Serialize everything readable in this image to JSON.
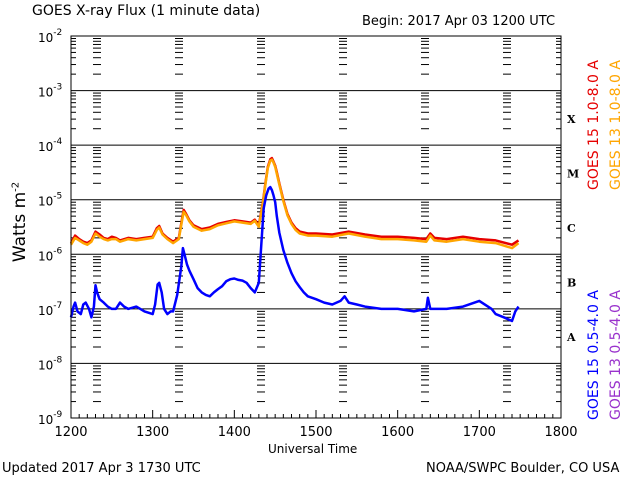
{
  "header": {
    "title": "GOES X-ray Flux (1 minute data)",
    "begin": "Begin: 2017 Apr 03 1200 UTC"
  },
  "footer": {
    "updated": "Updated 2017 Apr  3 1730 UTC",
    "source": "NOAA/SWPC Boulder, CO USA"
  },
  "chart_data": {
    "type": "line",
    "title": "GOES X-ray Flux (1 minute data)",
    "xlabel": "Universal Time",
    "ylabel": "Watts m",
    "ylabel_sup": "-2",
    "xlim": [
      1200,
      1800
    ],
    "ylim": [
      1e-09,
      0.01
    ],
    "yscale": "log",
    "grid": "horizontal lines at each decade",
    "x_ticks": [
      "1200",
      "1300",
      "1400",
      "1500",
      "1600",
      "1700",
      "1800"
    ],
    "y_ticks": [
      {
        "base": "10",
        "exp": "-9",
        "value": 1e-09
      },
      {
        "base": "10",
        "exp": "-8",
        "value": 1e-08
      },
      {
        "base": "10",
        "exp": "-7",
        "value": 1e-07
      },
      {
        "base": "10",
        "exp": "-6",
        "value": 1e-06
      },
      {
        "base": "10",
        "exp": "-5",
        "value": 1e-05
      },
      {
        "base": "10",
        "exp": "-4",
        "value": 0.0001
      },
      {
        "base": "10",
        "exp": "-3",
        "value": 0.001
      },
      {
        "base": "10",
        "exp": "-2",
        "value": 0.01
      }
    ],
    "flare_classes": [
      {
        "label": "A",
        "value": 1e-08
      },
      {
        "label": "B",
        "value": 1e-07
      },
      {
        "label": "C",
        "value": 1e-06
      },
      {
        "label": "M",
        "value": 1e-05
      },
      {
        "label": "X",
        "value": 0.0001
      }
    ],
    "legend": [
      {
        "text": "GOES 15 1.0-8.0 A",
        "color": "#e60000"
      },
      {
        "text": "GOES 13 1.0-8.0 A",
        "color": "#ffa500"
      },
      {
        "text": "GOES 15 0.5-4.0 A",
        "color": "#0000ff"
      },
      {
        "text": "GOES 13 0.5-4.0 A",
        "color": "#9932cc"
      }
    ],
    "series": [
      {
        "name": "GOES 15 1.0-8.0 A",
        "color": "#e60000",
        "x": [
          1200,
          1205,
          1210,
          1215,
          1220,
          1225,
          1230,
          1235,
          1240,
          1245,
          1250,
          1255,
          1260,
          1270,
          1280,
          1290,
          1300,
          1305,
          1308,
          1312,
          1318,
          1325,
          1332,
          1336,
          1338,
          1341,
          1345,
          1350,
          1360,
          1370,
          1380,
          1390,
          1400,
          1410,
          1420,
          1425,
          1430,
          1435,
          1438,
          1441,
          1444,
          1446,
          1448,
          1450,
          1452,
          1455,
          1460,
          1465,
          1470,
          1475,
          1480,
          1490,
          1500,
          1520,
          1540,
          1560,
          1580,
          1600,
          1620,
          1635,
          1640,
          1645,
          1660,
          1680,
          1700,
          1720,
          1740,
          1748
        ],
        "y": [
          1.6e-06,
          2.2e-06,
          1.9e-06,
          1.7e-06,
          1.6e-06,
          1.8e-06,
          2.6e-06,
          2.3e-06,
          2e-06,
          1.9e-06,
          2.1e-06,
          2e-06,
          1.8e-06,
          2e-06,
          1.9e-06,
          2e-06,
          2.1e-06,
          3e-06,
          3.3e-06,
          2.4e-06,
          2e-06,
          1.7e-06,
          2e-06,
          4.5e-06,
          6.5e-06,
          5.5e-06,
          4.2e-06,
          3.4e-06,
          2.9e-06,
          3.1e-06,
          3.6e-06,
          3.9e-06,
          4.2e-06,
          4e-06,
          3.8e-06,
          4.3e-06,
          3.4e-06,
          9e-06,
          2e-05,
          4e-05,
          5.5e-05,
          5.8e-05,
          5e-05,
          4.2e-05,
          3.2e-05,
          2e-05,
          1e-05,
          5.5e-06,
          3.8e-06,
          3e-06,
          2.6e-06,
          2.4e-06,
          2.4e-06,
          2.3e-06,
          2.6e-06,
          2.3e-06,
          2.1e-06,
          2.1e-06,
          2e-06,
          1.9e-06,
          2.4e-06,
          2e-06,
          1.9e-06,
          2.1e-06,
          1.9e-06,
          1.8e-06,
          1.5e-06,
          1.8e-06
        ]
      },
      {
        "name": "GOES 13 1.0-8.0 A",
        "color": "#ffa500",
        "x": [
          1200,
          1205,
          1210,
          1215,
          1220,
          1225,
          1230,
          1235,
          1240,
          1245,
          1250,
          1255,
          1260,
          1270,
          1280,
          1290,
          1300,
          1305,
          1308,
          1312,
          1318,
          1325,
          1332,
          1336,
          1338,
          1341,
          1345,
          1350,
          1360,
          1370,
          1380,
          1390,
          1400,
          1410,
          1420,
          1425,
          1430,
          1435,
          1438,
          1441,
          1444,
          1446,
          1448,
          1450,
          1452,
          1455,
          1460,
          1465,
          1470,
          1475,
          1480,
          1490,
          1500,
          1520,
          1540,
          1560,
          1580,
          1600,
          1620,
          1635,
          1640,
          1645,
          1660,
          1680,
          1700,
          1720,
          1740,
          1748
        ],
        "y": [
          1.5e-06,
          2e-06,
          1.8e-06,
          1.6e-06,
          1.5e-06,
          1.7e-06,
          2.4e-06,
          2.1e-06,
          1.9e-06,
          1.8e-06,
          1.9e-06,
          1.9e-06,
          1.7e-06,
          1.9e-06,
          1.8e-06,
          1.9e-06,
          2e-06,
          2.8e-06,
          3.1e-06,
          2.3e-06,
          1.9e-06,
          1.6e-06,
          1.9e-06,
          4.2e-06,
          6e-06,
          5.2e-06,
          4e-06,
          3.2e-06,
          2.7e-06,
          2.9e-06,
          3.4e-06,
          3.7e-06,
          4e-06,
          3.8e-06,
          3.6e-06,
          4.1e-06,
          3.2e-06,
          8.5e-06,
          1.9e-05,
          3.8e-05,
          5.2e-05,
          5.4e-05,
          4.8e-05,
          4e-05,
          3e-05,
          1.9e-05,
          9.5e-06,
          5.2e-06,
          3.6e-06,
          2.8e-06,
          2.4e-06,
          2.2e-06,
          2.2e-06,
          2.1e-06,
          2.4e-06,
          2.1e-06,
          1.9e-06,
          1.9e-06,
          1.8e-06,
          1.7e-06,
          2.2e-06,
          1.8e-06,
          1.7e-06,
          1.9e-06,
          1.7e-06,
          1.6e-06,
          1.3e-06,
          1.6e-06
        ]
      },
      {
        "name": "GOES 15 0.5-4.0 A",
        "color": "#0000ff",
        "x": [
          1200,
          1203,
          1205,
          1208,
          1212,
          1215,
          1218,
          1222,
          1225,
          1228,
          1230,
          1232,
          1235,
          1240,
          1245,
          1250,
          1255,
          1260,
          1265,
          1270,
          1280,
          1290,
          1300,
          1303,
          1306,
          1308,
          1311,
          1314,
          1318,
          1322,
          1325,
          1330,
          1335,
          1337,
          1339,
          1342,
          1345,
          1350,
          1355,
          1360,
          1365,
          1370,
          1375,
          1380,
          1385,
          1390,
          1395,
          1400,
          1405,
          1410,
          1415,
          1420,
          1425,
          1430,
          1433,
          1436,
          1439,
          1442,
          1444,
          1446,
          1448,
          1450,
          1452,
          1455,
          1460,
          1465,
          1470,
          1475,
          1480,
          1485,
          1490,
          1500,
          1510,
          1520,
          1530,
          1535,
          1540,
          1550,
          1560,
          1580,
          1600,
          1620,
          1635,
          1637,
          1640,
          1650,
          1660,
          1680,
          1700,
          1715,
          1720,
          1730,
          1740,
          1744,
          1748
        ],
        "y": [
          7e-08,
          1.1e-07,
          1.3e-07,
          9e-08,
          8e-08,
          1.2e-07,
          1.3e-07,
          1e-07,
          7e-08,
          1.1e-07,
          2.7e-07,
          2e-07,
          1.5e-07,
          1.3e-07,
          1.1e-07,
          1e-07,
          1e-07,
          1.3e-07,
          1.1e-07,
          1e-07,
          1.1e-07,
          9e-08,
          8e-08,
          1.2e-07,
          2.8e-07,
          3e-07,
          2e-07,
          1e-07,
          8e-08,
          9e-08,
          9e-08,
          1.8e-07,
          6e-07,
          1.3e-06,
          1e-06,
          6.5e-07,
          5e-07,
          3.5e-07,
          2.4e-07,
          2e-07,
          1.8e-07,
          1.7e-07,
          2e-07,
          2.3e-07,
          2.6e-07,
          3.2e-07,
          3.5e-07,
          3.6e-07,
          3.4e-07,
          3.3e-07,
          3e-07,
          2.4e-07,
          2e-07,
          3e-07,
          1.5e-06,
          7e-06,
          1.2e-05,
          1.6e-05,
          1.7e-05,
          1.5e-05,
          1.2e-05,
          9e-06,
          5e-06,
          2.5e-06,
          1.2e-06,
          7e-07,
          4.5e-07,
          3.2e-07,
          2.5e-07,
          2e-07,
          1.7e-07,
          1.5e-07,
          1.3e-07,
          1.2e-07,
          1.4e-07,
          1.7e-07,
          1.3e-07,
          1.2e-07,
          1.1e-07,
          1e-07,
          1e-07,
          9e-08,
          1e-07,
          1.6e-07,
          1e-07,
          1e-07,
          1e-07,
          1.1e-07,
          1.4e-07,
          1e-07,
          8e-08,
          7e-08,
          6e-08,
          9e-08,
          1.1e-07
        ]
      }
    ]
  }
}
